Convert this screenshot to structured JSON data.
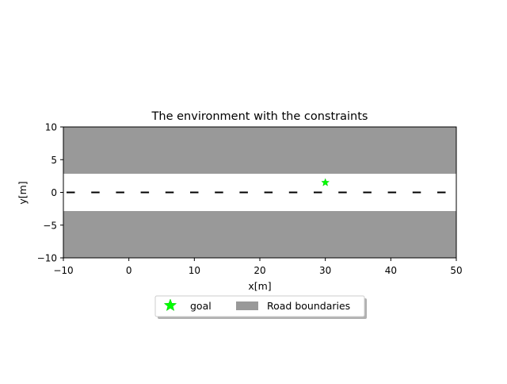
{
  "chart_data": {
    "type": "scatter",
    "title": "The environment with the constraints",
    "xlabel": "x[m]",
    "ylabel": "y[m]",
    "xlim": [
      -10,
      50
    ],
    "ylim": [
      -10,
      10
    ],
    "xticks": [
      -10,
      0,
      10,
      20,
      30,
      40,
      50
    ],
    "yticks": [
      -10,
      -5,
      0,
      5,
      10
    ],
    "xtick_labels": [
      "−10",
      "0",
      "10",
      "20",
      "30",
      "40",
      "50"
    ],
    "ytick_labels": [
      "−10",
      "−5",
      "0",
      "5",
      "10"
    ],
    "road_boundaries": {
      "name": "Road boundaries",
      "color": "#999999",
      "regions": [
        {
          "y_min": 2.85,
          "y_max": 10
        },
        {
          "y_min": -10,
          "y_max": -2.85
        }
      ]
    },
    "center_line": {
      "y": 0,
      "style": "dashed",
      "color": "#000000"
    },
    "series": [
      {
        "name": "goal",
        "marker": "star",
        "color": "#00ff00",
        "points": [
          {
            "x": 30,
            "y": 1.5
          }
        ]
      }
    ],
    "legend": {
      "placement": "bottom-center",
      "entries": [
        "goal",
        "Road boundaries"
      ],
      "ncol": 2
    },
    "grid": false
  }
}
